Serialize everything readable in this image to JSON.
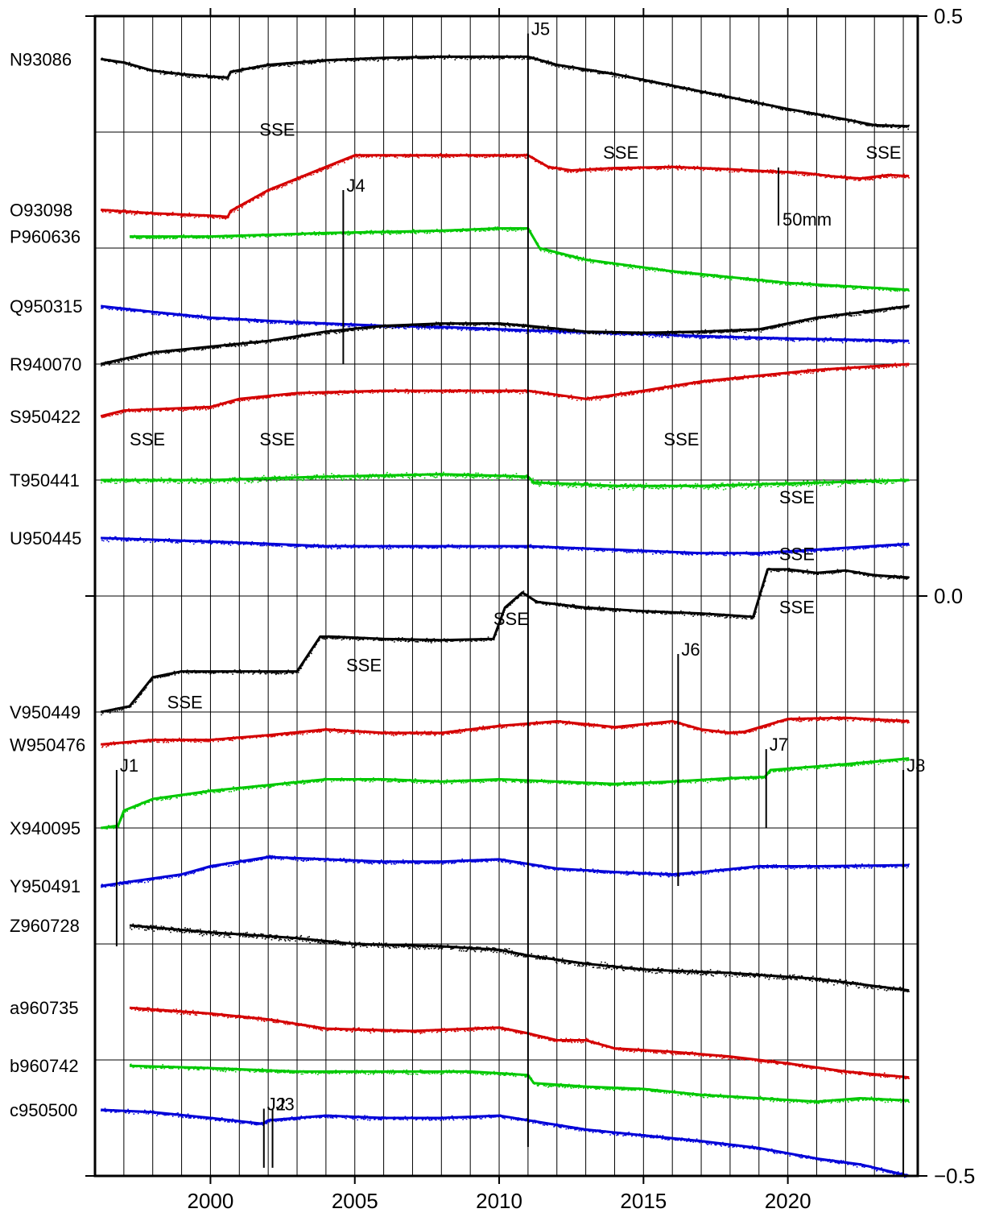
{
  "chart_data": {
    "type": "line",
    "title": "",
    "xlabel": "",
    "ylabel": "",
    "xlim": [
      1996,
      2024.5
    ],
    "ylim": [
      -0.5,
      0.5
    ],
    "x_ticks": [
      2000,
      2005,
      2010,
      2015,
      2020
    ],
    "x_tick_labels": [
      "2000",
      "2005",
      "2010",
      "2015",
      "2020"
    ],
    "y_ticks": [
      0.5,
      0.0,
      -0.5
    ],
    "y_tick_labels": [
      "0.5",
      "0.0",
      "−0.5"
    ],
    "grid": "vertical lines every year; horizontal lines every 0.1",
    "scale_bar_label": "50mm",
    "colors": {
      "black": "#000000",
      "red": "#d40000",
      "green": "#00c800",
      "blue": "#0000d8"
    },
    "series": [
      {
        "name": "N93086",
        "color": "black",
        "x": [
          1996.2,
          1997,
          1998,
          1999,
          2000,
          2000.6,
          2000.7,
          2002,
          2004,
          2006,
          2008,
          2010,
          2011,
          2012,
          2014,
          2016,
          2018,
          2020,
          2022,
          2023,
          2024.2
        ],
        "y": [
          0.463,
          0.46,
          0.453,
          0.45,
          0.448,
          0.447,
          0.452,
          0.458,
          0.462,
          0.464,
          0.465,
          0.465,
          0.465,
          0.458,
          0.45,
          0.44,
          0.43,
          0.42,
          0.411,
          0.406,
          0.405
        ]
      },
      {
        "name": "O93098",
        "color": "red",
        "x": [
          1996.2,
          1998,
          2000,
          2000.6,
          2000.7,
          2002,
          2003,
          2004,
          2005,
          2007,
          2009,
          2011,
          2011.7,
          2012.5,
          2014,
          2016,
          2018,
          2019.5,
          2020.5,
          2021.5,
          2022.5,
          2023.5,
          2024.2
        ],
        "y": [
          0.333,
          0.33,
          0.328,
          0.327,
          0.332,
          0.35,
          0.36,
          0.37,
          0.38,
          0.38,
          0.38,
          0.38,
          0.37,
          0.367,
          0.369,
          0.37,
          0.368,
          0.366,
          0.365,
          0.362,
          0.36,
          0.363,
          0.362
        ]
      },
      {
        "name": "P960636",
        "color": "green",
        "x": [
          1997.2,
          2000,
          2004,
          2008,
          2010,
          2011,
          2011.4,
          2013,
          2016,
          2020,
          2024.2
        ],
        "y": [
          0.31,
          0.31,
          0.313,
          0.315,
          0.317,
          0.317,
          0.3,
          0.29,
          0.28,
          0.27,
          0.264
        ]
      },
      {
        "name": "Q950315",
        "color": "blue",
        "x": [
          1996.2,
          1998,
          2000,
          2003,
          2006,
          2008,
          2011,
          2014,
          2017,
          2020,
          2024.2
        ],
        "y": [
          0.25,
          0.245,
          0.24,
          0.236,
          0.233,
          0.232,
          0.229,
          0.227,
          0.224,
          0.222,
          0.22
        ]
      },
      {
        "name": "R940070",
        "color": "black",
        "x": [
          1996.2,
          1998,
          2000,
          2002,
          2004,
          2006,
          2008,
          2010,
          2011,
          2013,
          2015,
          2017,
          2019,
          2021,
          2024.2
        ],
        "y": [
          0.2,
          0.21,
          0.215,
          0.22,
          0.228,
          0.233,
          0.235,
          0.235,
          0.233,
          0.228,
          0.227,
          0.228,
          0.23,
          0.24,
          0.25
        ]
      },
      {
        "name": "S950422",
        "color": "red",
        "x": [
          1996.2,
          1997,
          1999,
          2000,
          2001,
          2003,
          2006,
          2009,
          2011,
          2013,
          2015,
          2017,
          2019,
          2021,
          2024.2
        ],
        "y": [
          0.155,
          0.16,
          0.162,
          0.163,
          0.17,
          0.175,
          0.177,
          0.177,
          0.177,
          0.17,
          0.177,
          0.185,
          0.19,
          0.195,
          0.2
        ]
      },
      {
        "name": "T950441",
        "color": "green",
        "x": [
          1996.2,
          2000,
          2004,
          2008,
          2011,
          2011.2,
          2014,
          2017,
          2020,
          2024.2
        ],
        "y": [
          0.1,
          0.1,
          0.103,
          0.105,
          0.103,
          0.098,
          0.095,
          0.095,
          0.097,
          0.1
        ]
      },
      {
        "name": "U950445",
        "color": "blue",
        "x": [
          1996.2,
          2000,
          2004,
          2008,
          2011,
          2014,
          2017,
          2019,
          2021,
          2024.2
        ],
        "y": [
          0.05,
          0.047,
          0.043,
          0.043,
          0.043,
          0.04,
          0.037,
          0.037,
          0.04,
          0.045
        ]
      },
      {
        "name": "V950449",
        "color": "black",
        "x": [
          1996.2,
          1997.2,
          1998,
          1999,
          2001,
          2003,
          2003.8,
          2004.2,
          2006,
          2008,
          2009.8,
          2010.2,
          2010.8,
          2011.3,
          2013,
          2015,
          2017,
          2018.8,
          2019.3,
          2020,
          2021,
          2022,
          2023,
          2024.2
        ],
        "y": [
          -0.1,
          -0.095,
          -0.07,
          -0.065,
          -0.065,
          -0.065,
          -0.035,
          -0.035,
          -0.037,
          -0.038,
          -0.037,
          -0.01,
          0.003,
          -0.005,
          -0.01,
          -0.013,
          -0.015,
          -0.018,
          0.023,
          0.023,
          0.02,
          0.022,
          0.018,
          0.016
        ]
      },
      {
        "name": "W950476",
        "color": "red",
        "x": [
          1996.2,
          1998,
          2000,
          2002,
          2004,
          2006,
          2008,
          2010,
          2012,
          2014,
          2016,
          2017,
          2018,
          2018.5,
          2020,
          2022,
          2024.2
        ],
        "y": [
          -0.128,
          -0.124,
          -0.124,
          -0.12,
          -0.115,
          -0.118,
          -0.118,
          -0.112,
          -0.108,
          -0.113,
          -0.108,
          -0.115,
          -0.118,
          -0.117,
          -0.106,
          -0.105,
          -0.108
        ]
      },
      {
        "name": "X940095",
        "color": "green",
        "x": [
          1996.2,
          1996.8,
          1997,
          1998,
          2000,
          2002,
          2004,
          2006,
          2008,
          2010,
          2012,
          2014,
          2016,
          2018,
          2019.2,
          2019.4,
          2022,
          2024.2
        ],
        "y": [
          -0.2,
          -0.198,
          -0.185,
          -0.175,
          -0.168,
          -0.163,
          -0.158,
          -0.158,
          -0.16,
          -0.158,
          -0.16,
          -0.162,
          -0.16,
          -0.157,
          -0.156,
          -0.15,
          -0.145,
          -0.14
        ]
      },
      {
        "name": "Y950491",
        "color": "blue",
        "x": [
          1996.2,
          1997,
          1999,
          2000,
          2002,
          2004,
          2006,
          2008,
          2010,
          2012,
          2014,
          2016,
          2017,
          2019,
          2021,
          2024.2
        ],
        "y": [
          -0.25,
          -0.247,
          -0.24,
          -0.233,
          -0.225,
          -0.227,
          -0.229,
          -0.229,
          -0.227,
          -0.235,
          -0.238,
          -0.24,
          -0.238,
          -0.233,
          -0.233,
          -0.232
        ]
      },
      {
        "name": "Z960728",
        "color": "black",
        "x": [
          1997.2,
          2000,
          2003,
          2005,
          2008,
          2010,
          2011,
          2013,
          2015,
          2018,
          2021,
          2024.2
        ],
        "y": [
          -0.284,
          -0.29,
          -0.295,
          -0.3,
          -0.302,
          -0.305,
          -0.31,
          -0.317,
          -0.322,
          -0.325,
          -0.33,
          -0.34
        ]
      },
      {
        "name": "a960735",
        "color": "red",
        "x": [
          1997.2,
          2000,
          2002,
          2004,
          2007,
          2010,
          2011,
          2012,
          2013,
          2014,
          2016,
          2018,
          2020,
          2022,
          2024.2
        ],
        "y": [
          -0.355,
          -0.36,
          -0.365,
          -0.373,
          -0.375,
          -0.372,
          -0.377,
          -0.383,
          -0.383,
          -0.39,
          -0.393,
          -0.397,
          -0.403,
          -0.41,
          -0.415
        ]
      },
      {
        "name": "b960742",
        "color": "green",
        "x": [
          1997.2,
          2000,
          2003,
          2006,
          2009,
          2011,
          2011.2,
          2013,
          2015,
          2017,
          2019,
          2021,
          2022.5,
          2024.2
        ],
        "y": [
          -0.405,
          -0.407,
          -0.41,
          -0.41,
          -0.41,
          -0.413,
          -0.42,
          -0.423,
          -0.425,
          -0.43,
          -0.433,
          -0.436,
          -0.433,
          -0.435
        ]
      },
      {
        "name": "c950500",
        "color": "blue",
        "x": [
          1996.2,
          1998,
          2000,
          2001.8,
          2002,
          2004,
          2006,
          2008,
          2010,
          2011,
          2013,
          2015,
          2017,
          2019,
          2021,
          2022.5,
          2024.2
        ],
        "y": [
          -0.443,
          -0.445,
          -0.45,
          -0.455,
          -0.452,
          -0.448,
          -0.45,
          -0.45,
          -0.448,
          -0.452,
          -0.46,
          -0.465,
          -0.47,
          -0.476,
          -0.485,
          -0.49,
          -0.5
        ]
      }
    ],
    "annotations": [
      {
        "text": "SSE",
        "x": 2001.7,
        "y": 0.397
      },
      {
        "text": "SSE",
        "x": 2013.6,
        "y": 0.377
      },
      {
        "text": "SSE",
        "x": 2022.7,
        "y": 0.377
      },
      {
        "text": "SSE",
        "x": 1997.2,
        "y": 0.13
      },
      {
        "text": "SSE",
        "x": 2001.7,
        "y": 0.13
      },
      {
        "text": "SSE",
        "x": 2015.7,
        "y": 0.13
      },
      {
        "text": "SSE",
        "x": 2019.7,
        "y": 0.08
      },
      {
        "text": "SSE",
        "x": 2019.7,
        "y": 0.031
      },
      {
        "text": "SSE",
        "x": 2019.7,
        "y": -0.015
      },
      {
        "text": "SSE",
        "x": 2009.8,
        "y": -0.025
      },
      {
        "text": "SSE",
        "x": 2004.7,
        "y": -0.065
      },
      {
        "text": "SSE",
        "x": 1998.5,
        "y": -0.097
      }
    ],
    "markers": [
      {
        "text": "J1",
        "x": 1996.75,
        "y_top": -0.15,
        "y_bottom": -0.302
      },
      {
        "text": "J2",
        "x": 2001.85,
        "y_top": -0.442,
        "y_bottom": -0.493
      },
      {
        "text": "J3",
        "x": 2002.15,
        "y_top": -0.442,
        "y_bottom": -0.493
      },
      {
        "text": "J4",
        "x": 2004.6,
        "y_top": 0.35,
        "y_bottom": 0.2
      },
      {
        "text": "J5",
        "x": 2011.0,
        "y_top": 0.485,
        "y_bottom": -0.475
      },
      {
        "text": "J6",
        "x": 2016.2,
        "y_top": -0.05,
        "y_bottom": -0.25
      },
      {
        "text": "J7",
        "x": 2019.25,
        "y_top": -0.132,
        "y_bottom": -0.2
      },
      {
        "text": "J8",
        "x": 2024.0,
        "y_top": -0.15,
        "y_bottom": -0.5
      }
    ]
  }
}
